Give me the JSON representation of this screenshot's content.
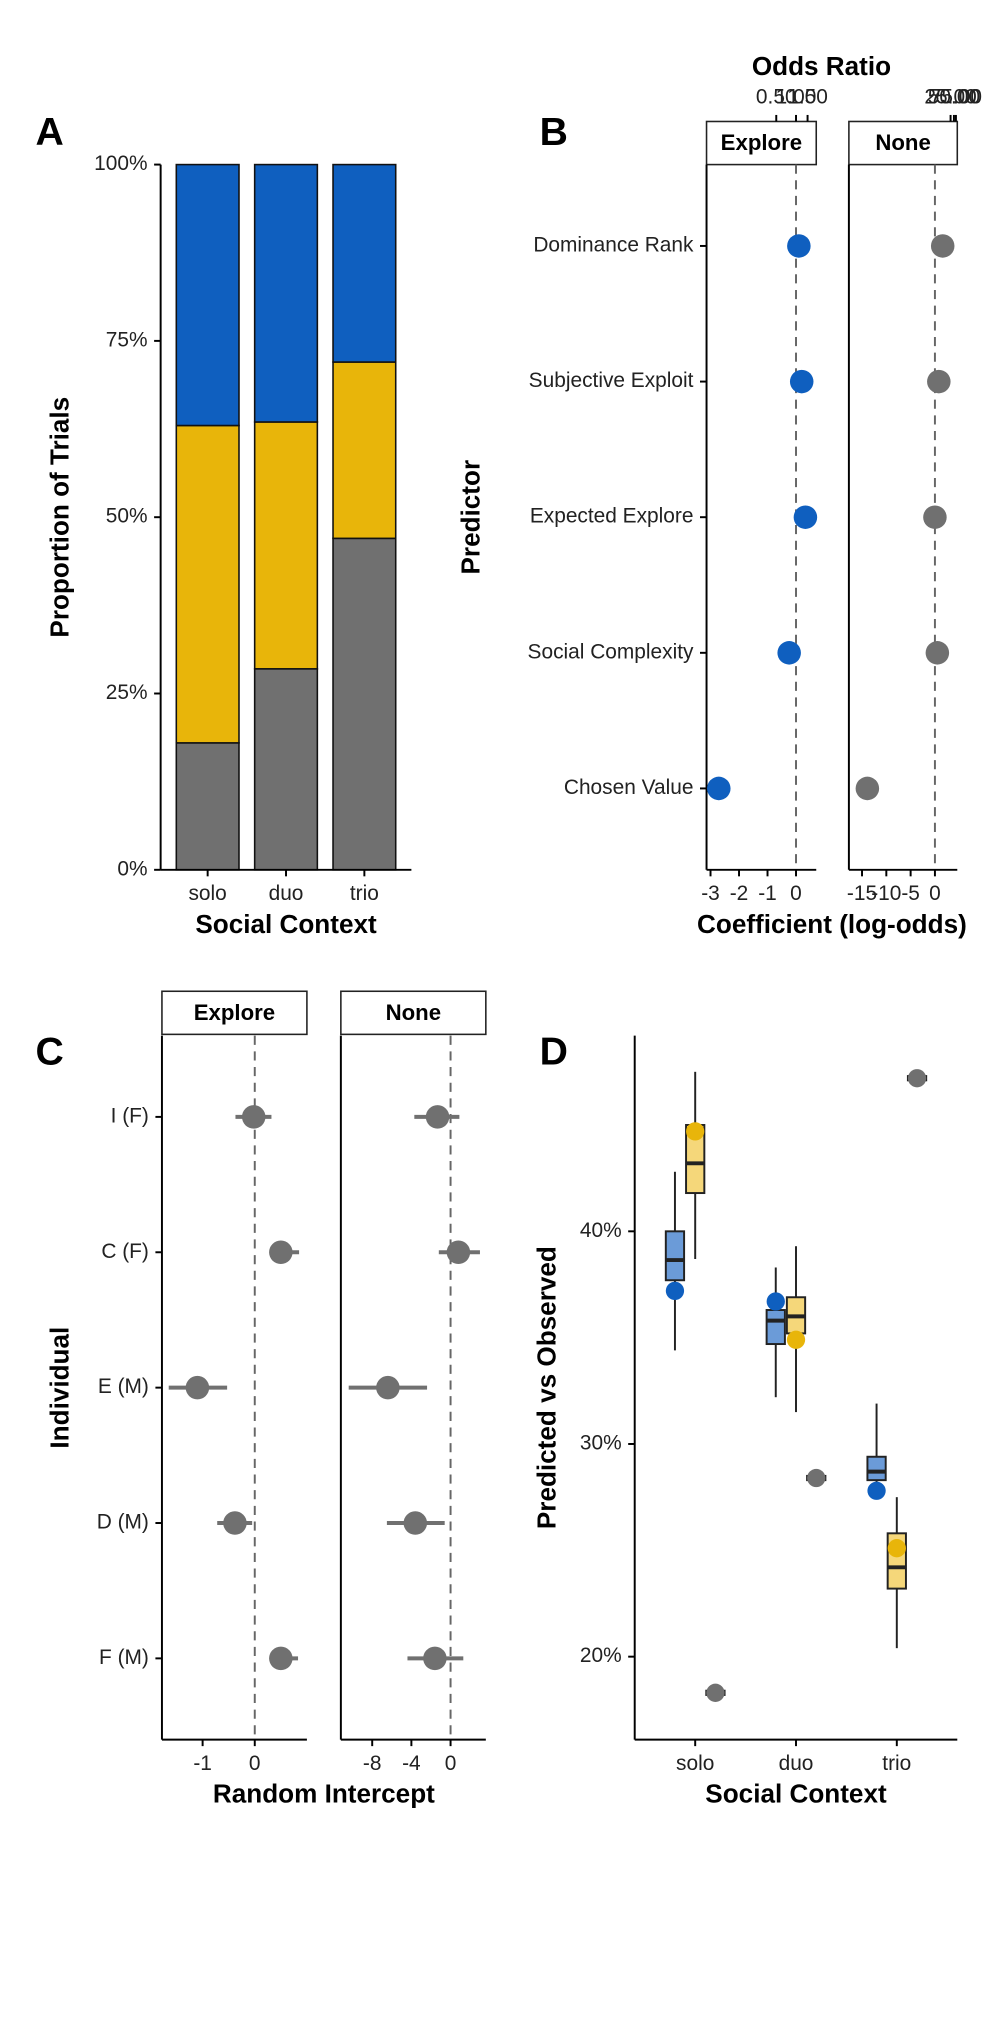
{
  "chart_data": [
    {
      "type": "stacked_bar",
      "panel": "A",
      "categories": [
        "solo",
        "duo",
        "trio"
      ],
      "series": [
        {
          "color": "#707070",
          "values": [
            18,
            28.5,
            47
          ]
        },
        {
          "color": "#e8b50a",
          "values": [
            45,
            35,
            25
          ]
        },
        {
          "color": "#0f5fbf",
          "values": [
            37,
            36.5,
            28
          ]
        }
      ],
      "ylim": [
        0,
        100
      ],
      "yticks": [
        {
          "value": 0,
          "label": "0%"
        },
        {
          "value": 25,
          "label": "25%"
        },
        {
          "value": 50,
          "label": "50%"
        },
        {
          "value": 75,
          "label": "75%"
        },
        {
          "value": 100,
          "label": "100%"
        }
      ],
      "xlabel": "Social Context",
      "ylabel": "Proportion of Trials"
    },
    {
      "type": "dot_facets",
      "panel": "B",
      "title": "Odds Ratio",
      "x2_scale": "log",
      "reference_x": 0,
      "categories": [
        "Dominance Rank",
        "Subjective Exploit",
        "Expected Explore",
        "Social Complexity",
        "Chosen Value"
      ],
      "xlabel": "Coefficient (log-odds)",
      "ylabel": "Predictor",
      "facets": [
        {
          "name": "Explore",
          "color": "#0f5fbf",
          "values": [
            0.1,
            0.2,
            0.33,
            -0.24,
            -2.71
          ],
          "xlim": [
            -3.14,
            0.71
          ],
          "xticks": [
            -3,
            -2,
            -1,
            0
          ],
          "x2ticks": [
            {
              "value": 0.5,
              "label": "0.50"
            },
            {
              "value": 1,
              "label": "1.00"
            },
            {
              "value": 1.5,
              "label": "1.50"
            }
          ]
        },
        {
          "name": "None",
          "color": "#707070",
          "values": [
            1.6,
            0.8,
            0,
            0.5,
            -13.9
          ],
          "xlim": [
            -17.7,
            4.6
          ],
          "xticks": [
            -15,
            -10,
            -5,
            0
          ],
          "x2ticks": [
            {
              "value": 25,
              "label": "25.00"
            },
            {
              "value": 50,
              "label": "50.00"
            },
            {
              "value": 75,
              "label": "75.00"
            }
          ]
        }
      ]
    },
    {
      "type": "dot_facets",
      "panel": "C",
      "reference_x": 0,
      "categories": [
        "I (F)",
        "C (F)",
        "E (M)",
        "D (M)",
        "F (M)"
      ],
      "xlabel": "Random Intercept",
      "ylabel": "Individual",
      "facets": [
        {
          "name": "Explore",
          "color": "#707070",
          "values": [
            -0.02,
            0.5,
            -1.1,
            -0.38,
            0.5
          ],
          "lower": [
            -0.37,
            0.3,
            -1.65,
            -0.72,
            0.3
          ],
          "upper": [
            0.32,
            0.85,
            -0.53,
            -0.05,
            0.83
          ],
          "xlim": [
            -1.78,
            1.0
          ],
          "xticks": [
            -1,
            0
          ]
        },
        {
          "name": "None",
          "color": "#707070",
          "values": [
            -1.33,
            0.8,
            -6.4,
            -3.6,
            -1.6
          ],
          "lower": [
            -3.7,
            -1.2,
            -10.4,
            -6.5,
            -4.4
          ],
          "upper": [
            0.9,
            3,
            -2.4,
            -0.6,
            1.3
          ],
          "xlim": [
            -11.2,
            3.6
          ],
          "xticks": [
            -8,
            -4,
            0
          ]
        }
      ]
    },
    {
      "type": "box",
      "panel": "D",
      "categories": [
        "solo",
        "duo",
        "trio"
      ],
      "xlabel": "Social Context",
      "ylabel": "Predicted vs Observed",
      "ylim": [
        16.1,
        49.2
      ],
      "yticks": [
        {
          "value": 20,
          "label": "20%"
        },
        {
          "value": 30,
          "label": "30%"
        },
        {
          "value": 40,
          "label": "40%"
        }
      ],
      "series": [
        {
          "color": "#0f5fbf",
          "fill": "#6b9bd8",
          "whisker_low": [
            34.4,
            32.2,
            27.7
          ],
          "q1": [
            37.7,
            34.7,
            28.3
          ],
          "median": [
            38.65,
            35.8,
            28.7
          ],
          "q3": [
            40.0,
            36.3,
            29.4
          ],
          "whisker_high": [
            42.8,
            38.3,
            31.9
          ],
          "observed": [
            37.2,
            36.7,
            27.8
          ]
        },
        {
          "color": "#e8b50a",
          "fill": "#f5d77a",
          "whisker_low": [
            38.7,
            31.5,
            20.4
          ],
          "q1": [
            41.8,
            35.2,
            23.2
          ],
          "median": [
            43.2,
            36.0,
            24.2
          ],
          "q3": [
            45.0,
            36.9,
            25.8
          ],
          "whisker_high": [
            47.5,
            39.3,
            27.5
          ],
          "observed": [
            44.7,
            34.9,
            25.1
          ]
        },
        {
          "color": "#707070",
          "fill": "#9a9a9a",
          "whisker_low": [
            18.0,
            28.1,
            46.8
          ],
          "q1": [
            18.2,
            28.3,
            47.1
          ],
          "median": [
            18.3,
            28.4,
            47.2
          ],
          "q3": [
            18.4,
            28.5,
            47.3
          ],
          "whisker_high": [
            18.7,
            28.7,
            47.6
          ],
          "observed": [
            18.3,
            28.4,
            47.2
          ]
        }
      ]
    }
  ]
}
